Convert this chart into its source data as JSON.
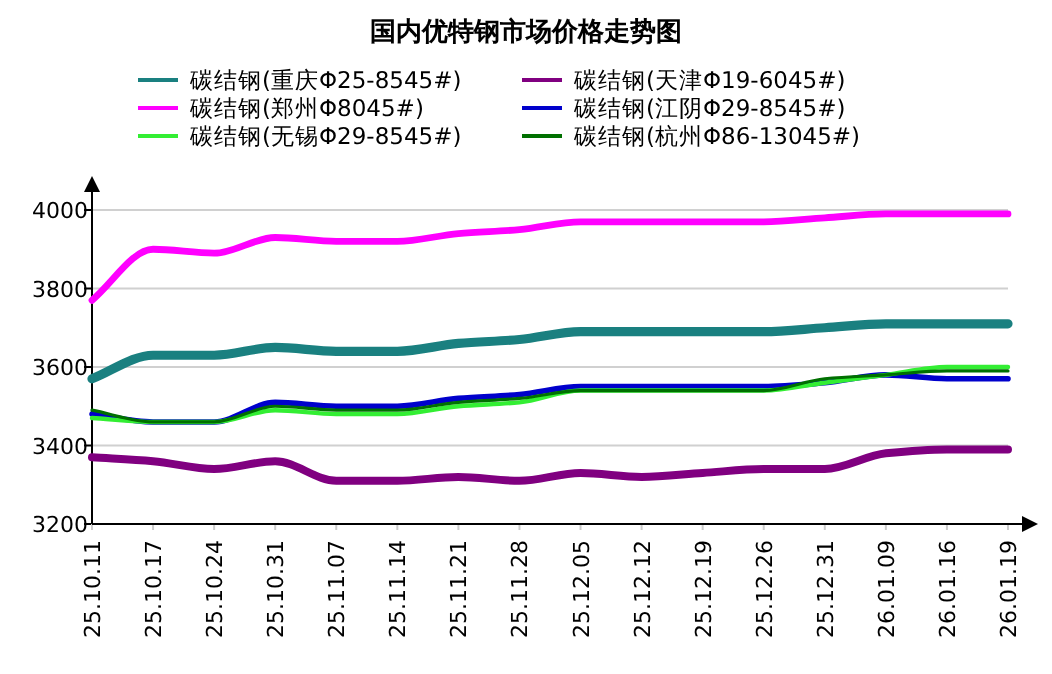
{
  "chart_data": {
    "type": "line",
    "title": "国内优特钢市场价格走势图",
    "categories": [
      "25.10.11",
      "25.10.17",
      "25.10.24",
      "25.10.31",
      "25.11.07",
      "25.11.14",
      "25.11.21",
      "25.11.28",
      "25.12.05",
      "25.12.12",
      "25.12.19",
      "25.12.26",
      "25.12.31",
      "26.01.09",
      "26.01.16",
      "26.01.19"
    ],
    "series": [
      {
        "name": "碳结钢(重庆Φ25-8545#)",
        "color": "#1a8080",
        "values": [
          3570,
          3630,
          3630,
          3650,
          3640,
          3640,
          3660,
          3670,
          3690,
          3690,
          3690,
          3690,
          3700,
          3710,
          3710,
          3710
        ]
      },
      {
        "name": "碳结钢(天津Φ19-6045#)",
        "color": "#800080",
        "values": [
          3370,
          3360,
          3340,
          3360,
          3310,
          3310,
          3320,
          3310,
          3330,
          3320,
          3330,
          3340,
          3340,
          3380,
          3390,
          3390
        ]
      },
      {
        "name": "碳结钢(郑州Φ8045#)",
        "color": "#ff00ff",
        "values": [
          3770,
          3900,
          3890,
          3930,
          3920,
          3920,
          3940,
          3950,
          3970,
          3970,
          3970,
          3970,
          3980,
          3990,
          3990,
          3990
        ]
      },
      {
        "name": "碳结钢(江阴Φ29-8545#)",
        "color": "#0000cc",
        "values": [
          3480,
          3460,
          3460,
          3510,
          3500,
          3500,
          3520,
          3530,
          3550,
          3550,
          3550,
          3550,
          3560,
          3580,
          3570,
          3570
        ]
      },
      {
        "name": "碳结钢(无锡Φ29-8545#)",
        "color": "#33ee33",
        "values": [
          3470,
          3460,
          3460,
          3490,
          3480,
          3480,
          3500,
          3510,
          3540,
          3540,
          3540,
          3540,
          3560,
          3580,
          3600,
          3600
        ]
      },
      {
        "name": "碳结钢(杭州Φ86-13045#)",
        "color": "#007000",
        "values": [
          3490,
          3460,
          3460,
          3500,
          3490,
          3490,
          3510,
          3520,
          3540,
          3540,
          3540,
          3540,
          3570,
          3580,
          3590,
          3590
        ]
      }
    ],
    "ylim": [
      3200,
      4000
    ],
    "yticks": [
      3200,
      3400,
      3600,
      3800,
      4000
    ],
    "grid": "y",
    "legend": "top",
    "marker": "none",
    "line_style": "solid"
  }
}
